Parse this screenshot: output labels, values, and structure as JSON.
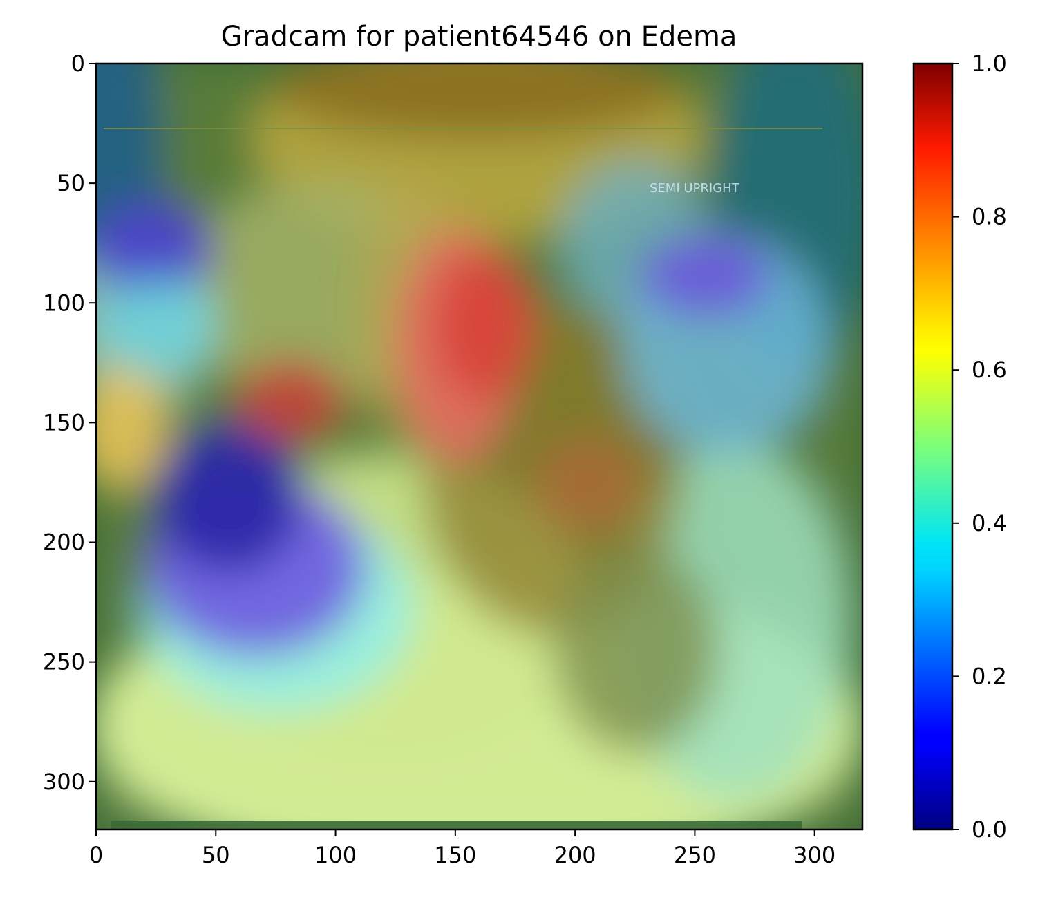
{
  "chart_data": {
    "type": "heatmap",
    "title": "Gradcam for patient64546 on Edema",
    "xlabel": "",
    "ylabel": "",
    "xlim": [
      0,
      320
    ],
    "ylim": [
      320,
      0
    ],
    "x_ticks": [
      0,
      50,
      100,
      150,
      200,
      250,
      300
    ],
    "y_ticks": [
      0,
      50,
      100,
      150,
      200,
      250,
      300
    ],
    "colormap": "jet",
    "colorbar": {
      "range": [
        0.0,
        1.0
      ],
      "ticks": [
        "0.0",
        "0.2",
        "0.4",
        "0.6",
        "0.8",
        "1.0"
      ],
      "tick_values": [
        0.0,
        0.2,
        0.4,
        0.6,
        0.8,
        1.0
      ]
    },
    "overlay_text": "SEMI UPRIGHT",
    "image_description_items": [
      {
        "name": "mediastinum-peak",
        "x": 150,
        "y": 120,
        "value": 0.9
      },
      {
        "name": "upper-center",
        "x": 140,
        "y": 15,
        "value": 0.72
      },
      {
        "name": "left-hilum",
        "x": 80,
        "y": 145,
        "value": 0.85
      },
      {
        "name": "right-lower-lung",
        "x": 205,
        "y": 175,
        "value": 0.75
      },
      {
        "name": "left-lower-lung-cold",
        "x": 60,
        "y": 210,
        "value": 0.05
      },
      {
        "name": "left-upper-cold",
        "x": 20,
        "y": 80,
        "value": 0.08
      },
      {
        "name": "right-upper-cold",
        "x": 255,
        "y": 100,
        "value": 0.1
      },
      {
        "name": "lower-field",
        "x": 160,
        "y": 290,
        "value": 0.6
      }
    ]
  }
}
